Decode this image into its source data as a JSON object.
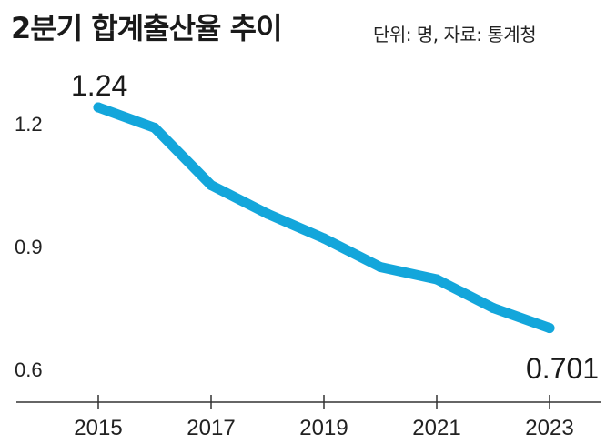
{
  "chart_data": {
    "type": "line",
    "title": "2분기 합계출산율 추이",
    "subtitle": "단위: 명, 자료: 통계청",
    "xlabel": "",
    "ylabel": "",
    "x": [
      2015,
      2016,
      2017,
      2018,
      2019,
      2020,
      2021,
      2022,
      2023
    ],
    "x_tick_labels": [
      "2015",
      "2017",
      "2019",
      "2021",
      "2023"
    ],
    "y_tick_labels": [
      "1.2",
      "0.9",
      "0.6"
    ],
    "xlim": [
      2014,
      2023.4
    ],
    "ylim": [
      0.6,
      1.26
    ],
    "series": [
      {
        "values": [
          1.24,
          1.19,
          1.05,
          0.98,
          0.92,
          0.85,
          0.82,
          0.75,
          0.701
        ],
        "color": "#13a6db"
      }
    ],
    "annotations": [
      {
        "x": 2015,
        "y": 1.24,
        "text": "1.24"
      },
      {
        "x": 2023,
        "y": 0.701,
        "text": "0.701"
      }
    ],
    "grid": false,
    "legend": "none"
  }
}
